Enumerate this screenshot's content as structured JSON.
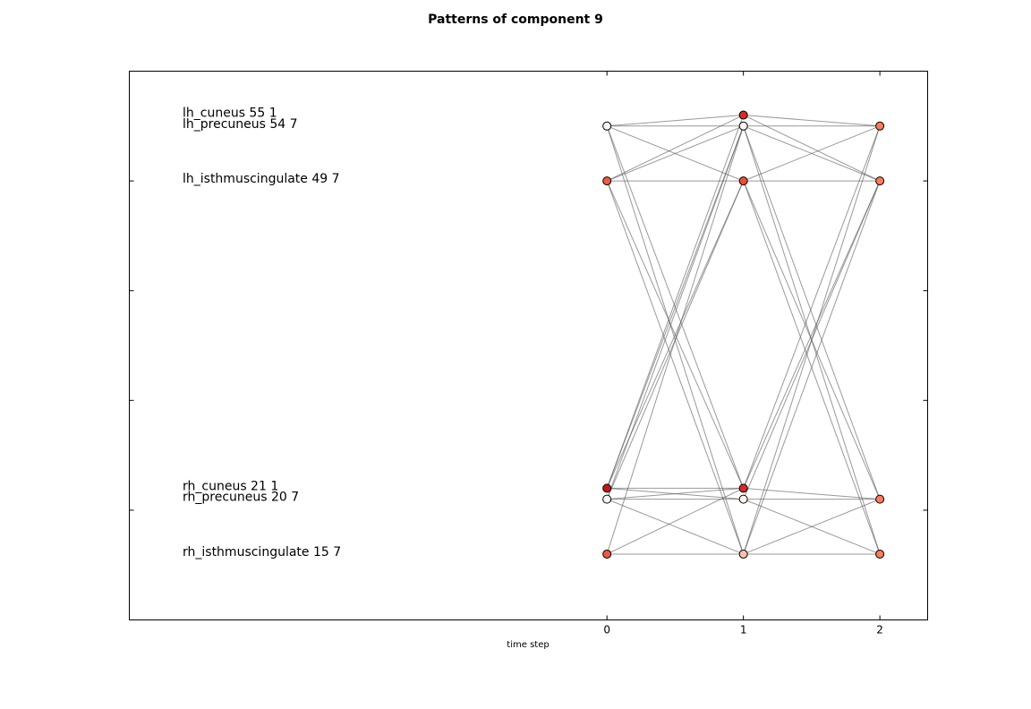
{
  "chart_data": {
    "type": "network",
    "title": "Patterns of component 9",
    "xlabel": "time step",
    "ylabel": "",
    "x_ticks": [
      "0",
      "1",
      "2"
    ],
    "xlim": [
      -3.5,
      2.35
    ],
    "ylim": [
      -5,
      0
    ],
    "y_tick_values": [
      -4,
      -3,
      -2,
      -1,
      0
    ],
    "grid": false,
    "colors": {
      "lh_cuneus": "#f6d1c1",
      "lh_precuneus": "#fff5f0",
      "lh_isthmuscingulate": "#f05a41",
      "rh_cuneus": "#e0342a",
      "rh_precuneus": "#fff8f4",
      "rh_isthmuscingulate": "#f26b4e",
      "dark_red": "#c4161c",
      "salmon": "#fb7c5c",
      "pale": "#fcc8b0",
      "edge": "#555555"
    },
    "region_labels": [
      {
        "text": "lh_cuneus 55 1",
        "y": 0.4
      },
      {
        "text": "lh_precuneus 54 7",
        "y": 0.5
      },
      {
        "text": "lh_isthmuscingulate 49 7",
        "y": 1.0
      },
      {
        "text": "rh_cuneus 21 1",
        "y": 3.8
      },
      {
        "text": "rh_precuneus 20 7",
        "y": 3.9
      },
      {
        "text": "rh_isthmuscingulate 15 7",
        "y": 4.4
      }
    ],
    "nodes": [
      {
        "id": "t0_lhp",
        "x": 0,
        "y": 0.5,
        "color": "#fff5f0"
      },
      {
        "id": "t0_lhi",
        "x": 0,
        "y": 1.0,
        "color": "#f05a41"
      },
      {
        "id": "t0_rhc",
        "x": 0,
        "y": 3.8,
        "color": "#c4161c"
      },
      {
        "id": "t0_rhp",
        "x": 0,
        "y": 3.9,
        "color": "#fff5f0"
      },
      {
        "id": "t0_rhi",
        "x": 0,
        "y": 4.4,
        "color": "#f05a41"
      },
      {
        "id": "t1_lhc",
        "x": 1,
        "y": 0.4,
        "color": "#d62d26"
      },
      {
        "id": "t1_lhp",
        "x": 1,
        "y": 0.5,
        "color": "#fff5f0"
      },
      {
        "id": "t1_lhi",
        "x": 1,
        "y": 1.0,
        "color": "#f04d37"
      },
      {
        "id": "t1_rhc",
        "x": 1,
        "y": 3.8,
        "color": "#d62d26"
      },
      {
        "id": "t1_rhp",
        "x": 1,
        "y": 3.9,
        "color": "#fff5f0"
      },
      {
        "id": "t1_rhi",
        "x": 1,
        "y": 4.4,
        "color": "#fcc2aa"
      },
      {
        "id": "t2_lhp",
        "x": 2,
        "y": 0.5,
        "color": "#fb7c5c"
      },
      {
        "id": "t2_lhi",
        "x": 2,
        "y": 1.0,
        "color": "#fb7c5c"
      },
      {
        "id": "t2_rhp",
        "x": 2,
        "y": 3.9,
        "color": "#fb7c5c"
      },
      {
        "id": "t2_rhi",
        "x": 2,
        "y": 4.4,
        "color": "#fb7c5c"
      }
    ],
    "edges": [
      [
        "t0_lhp",
        "t1_lhc"
      ],
      [
        "t0_lhp",
        "t1_lhp"
      ],
      [
        "t0_lhp",
        "t1_lhi"
      ],
      [
        "t0_lhp",
        "t1_rhc"
      ],
      [
        "t0_lhp",
        "t1_rhi"
      ],
      [
        "t0_lhi",
        "t1_lhc"
      ],
      [
        "t0_lhi",
        "t1_lhp"
      ],
      [
        "t0_lhi",
        "t1_lhi"
      ],
      [
        "t0_lhi",
        "t1_rhc"
      ],
      [
        "t0_lhi",
        "t1_rhi"
      ],
      [
        "t0_rhc",
        "t1_lhc"
      ],
      [
        "t0_rhc",
        "t1_lhp"
      ],
      [
        "t0_rhc",
        "t1_lhi"
      ],
      [
        "t0_rhc",
        "t1_rhc"
      ],
      [
        "t0_rhc",
        "t1_rhp"
      ],
      [
        "t0_rhp",
        "t1_lhp"
      ],
      [
        "t0_rhp",
        "t1_lhi"
      ],
      [
        "t0_rhp",
        "t1_rhc"
      ],
      [
        "t0_rhp",
        "t1_rhp"
      ],
      [
        "t0_rhp",
        "t1_rhi"
      ],
      [
        "t0_rhi",
        "t1_lhp"
      ],
      [
        "t0_rhi",
        "t1_rhc"
      ],
      [
        "t0_rhi",
        "t1_rhi"
      ],
      [
        "t1_lhc",
        "t2_lhp"
      ],
      [
        "t1_lhc",
        "t2_lhi"
      ],
      [
        "t1_lhp",
        "t2_lhp"
      ],
      [
        "t1_lhp",
        "t2_lhi"
      ],
      [
        "t1_lhp",
        "t2_rhp"
      ],
      [
        "t1_lhp",
        "t2_rhi"
      ],
      [
        "t1_lhi",
        "t2_lhp"
      ],
      [
        "t1_lhi",
        "t2_lhi"
      ],
      [
        "t1_lhi",
        "t2_rhp"
      ],
      [
        "t1_lhi",
        "t2_rhi"
      ],
      [
        "t1_rhc",
        "t2_lhp"
      ],
      [
        "t1_rhc",
        "t2_lhi"
      ],
      [
        "t1_rhc",
        "t2_rhp"
      ],
      [
        "t1_rhp",
        "t2_lhi"
      ],
      [
        "t1_rhp",
        "t2_rhp"
      ],
      [
        "t1_rhp",
        "t2_rhi"
      ],
      [
        "t1_rhi",
        "t2_lhp"
      ],
      [
        "t1_rhi",
        "t2_lhi"
      ],
      [
        "t1_rhi",
        "t2_rhp"
      ],
      [
        "t1_rhi",
        "t2_rhi"
      ]
    ]
  }
}
